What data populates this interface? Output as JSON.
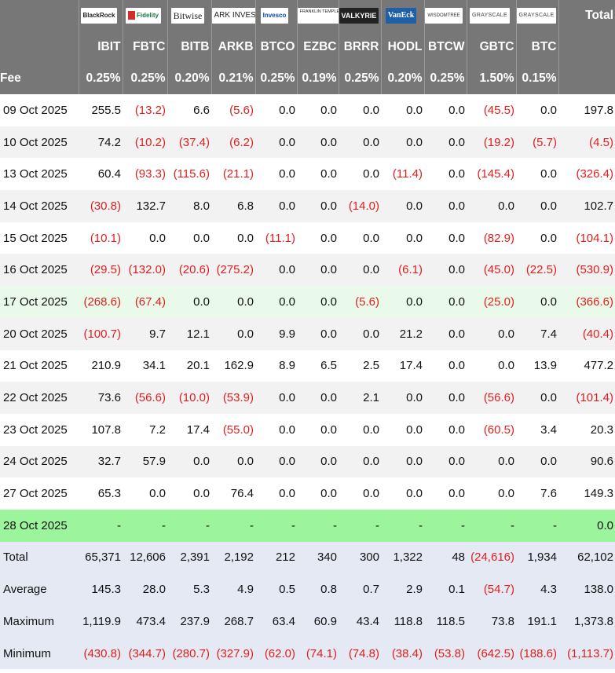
{
  "header": {
    "total_label": "Total",
    "fee_label": "Fee",
    "columns": [
      {
        "logo": "BlackRock",
        "ticker": "IBIT",
        "fee": "0.25%"
      },
      {
        "logo": "Fidelity",
        "ticker": "FBTC",
        "fee": "0.25%"
      },
      {
        "logo": "Bitwise",
        "ticker": "BITB",
        "fee": "0.20%"
      },
      {
        "logo": "ARK INVEST",
        "ticker": "ARKB",
        "fee": "0.21%"
      },
      {
        "logo": "Invesco",
        "ticker": "BTCO",
        "fee": "0.25%"
      },
      {
        "logo": "FRANKLIN TEMPLETON",
        "ticker": "EZBC",
        "fee": "0.19%"
      },
      {
        "logo": "VALKYRIE",
        "ticker": "BRRR",
        "fee": "0.25%"
      },
      {
        "logo": "VanEck",
        "ticker": "HODL",
        "fee": "0.20%"
      },
      {
        "logo": "WISDOMTREE",
        "ticker": "BTCW",
        "fee": "0.25%"
      },
      {
        "logo": "GRAYSCALE",
        "ticker": "GBTC",
        "fee": "1.50%"
      },
      {
        "logo": "GRAYSCALE",
        "ticker": "BTC",
        "fee": "0.15%"
      }
    ]
  },
  "colors": {
    "header_bg": "#777777",
    "negative": "#e02020",
    "highlight_green": "#9cf59c",
    "highlight_light": "#eafaea",
    "summary_bg": "#e4e9f4",
    "stripe": "#f2f2f2"
  },
  "rows": [
    {
      "date": "09 Oct 2025",
      "values": [
        "255.5",
        "(13.2)",
        "6.6",
        "(5.6)",
        "0.0",
        "0.0",
        "0.0",
        "0.0",
        "0.0",
        "(45.5)",
        "0.0",
        "197.8"
      ]
    },
    {
      "date": "10 Oct 2025",
      "values": [
        "74.2",
        "(10.2)",
        "(37.4)",
        "(6.2)",
        "0.0",
        "0.0",
        "0.0",
        "0.0",
        "0.0",
        "(19.2)",
        "(5.7)",
        "(4.5)"
      ]
    },
    {
      "date": "13 Oct 2025",
      "values": [
        "60.4",
        "(93.3)",
        "(115.6)",
        "(21.1)",
        "0.0",
        "0.0",
        "0.0",
        "(11.4)",
        "0.0",
        "(145.4)",
        "0.0",
        "(326.4)"
      ]
    },
    {
      "date": "14 Oct 2025",
      "values": [
        "(30.8)",
        "132.7",
        "8.0",
        "6.8",
        "0.0",
        "0.0",
        "(14.0)",
        "0.0",
        "0.0",
        "0.0",
        "0.0",
        "102.7"
      ]
    },
    {
      "date": "15 Oct 2025",
      "values": [
        "(10.1)",
        "0.0",
        "0.0",
        "0.0",
        "(11.1)",
        "0.0",
        "0.0",
        "0.0",
        "0.0",
        "(82.9)",
        "0.0",
        "(104.1)"
      ]
    },
    {
      "date": "16 Oct 2025",
      "values": [
        "(29.5)",
        "(132.0)",
        "(20.6)",
        "(275.2)",
        "0.0",
        "0.0",
        "0.0",
        "(6.1)",
        "0.0",
        "(45.0)",
        "(22.5)",
        "(530.9)"
      ]
    },
    {
      "date": "17 Oct 2025",
      "values": [
        "(268.6)",
        "(67.4)",
        "0.0",
        "0.0",
        "0.0",
        "0.0",
        "(5.6)",
        "0.0",
        "0.0",
        "(25.0)",
        "0.0",
        "(366.6)"
      ],
      "highlight": "light"
    },
    {
      "date": "20 Oct 2025",
      "values": [
        "(100.7)",
        "9.7",
        "12.1",
        "0.0",
        "9.9",
        "0.0",
        "0.0",
        "21.2",
        "0.0",
        "0.0",
        "7.4",
        "(40.4)"
      ]
    },
    {
      "date": "21 Oct 2025",
      "values": [
        "210.9",
        "34.1",
        "20.1",
        "162.9",
        "8.9",
        "6.5",
        "2.5",
        "17.4",
        "0.0",
        "0.0",
        "13.9",
        "477.2"
      ]
    },
    {
      "date": "22 Oct 2025",
      "values": [
        "73.6",
        "(56.6)",
        "(10.0)",
        "(53.9)",
        "0.0",
        "0.0",
        "2.1",
        "0.0",
        "0.0",
        "(56.6)",
        "0.0",
        "(101.4)"
      ]
    },
    {
      "date": "23 Oct 2025",
      "values": [
        "107.8",
        "7.2",
        "17.4",
        "(55.0)",
        "0.0",
        "0.0",
        "0.0",
        "0.0",
        "0.0",
        "(60.5)",
        "3.4",
        "20.3"
      ]
    },
    {
      "date": "24 Oct 2025",
      "values": [
        "32.7",
        "57.9",
        "0.0",
        "0.0",
        "0.0",
        "0.0",
        "0.0",
        "0.0",
        "0.0",
        "0.0",
        "0.0",
        "90.6"
      ]
    },
    {
      "date": "27 Oct 2025",
      "values": [
        "65.3",
        "0.0",
        "0.0",
        "76.4",
        "0.0",
        "0.0",
        "0.0",
        "0.0",
        "0.0",
        "0.0",
        "7.6",
        "149.3"
      ]
    },
    {
      "date": "28 Oct 2025",
      "values": [
        "-",
        "-",
        "-",
        "-",
        "-",
        "-",
        "-",
        "-",
        "-",
        "-",
        "-",
        "0.0"
      ],
      "highlight": "green"
    }
  ],
  "summary": [
    {
      "label": "Total",
      "values": [
        "65,371",
        "12,606",
        "2,391",
        "2,192",
        "212",
        "340",
        "300",
        "1,322",
        "48",
        "(24,616)",
        "1,934",
        "62,102"
      ]
    },
    {
      "label": "Average",
      "values": [
        "145.3",
        "28.0",
        "5.3",
        "4.9",
        "0.5",
        "0.8",
        "0.7",
        "2.9",
        "0.1",
        "(54.7)",
        "4.3",
        "138.0"
      ]
    },
    {
      "label": "Maximum",
      "values": [
        "1,119.9",
        "473.4",
        "237.9",
        "268.7",
        "63.4",
        "60.9",
        "43.4",
        "118.8",
        "118.5",
        "73.8",
        "191.1",
        "1,373.8"
      ]
    },
    {
      "label": "Minimum",
      "values": [
        "(430.8)",
        "(344.7)",
        "(280.7)",
        "(327.9)",
        "(62.0)",
        "(74.1)",
        "(74.8)",
        "(38.4)",
        "(53.8)",
        "(642.5)",
        "(188.6)",
        "(1,113.7)"
      ]
    }
  ]
}
